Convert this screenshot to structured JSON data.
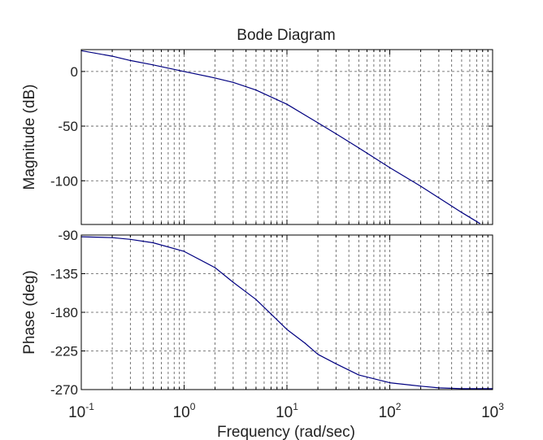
{
  "chart_data": [
    {
      "type": "line",
      "title": "Bode Diagram",
      "xlabel": "",
      "ylabel": "Magnitude (dB)",
      "xscale": "log",
      "xlim": [
        0.1,
        1000
      ],
      "ylim": [
        -140,
        20
      ],
      "yticks": [
        "0",
        "-50",
        "-100"
      ],
      "ytick_values": [
        0,
        -50,
        -100
      ],
      "grid": true,
      "series": [
        {
          "color": "#000080",
          "x": [
            0.1,
            0.2,
            0.3,
            0.5,
            1,
            2,
            3,
            5,
            10,
            20,
            30,
            50,
            100,
            200,
            500,
            750
          ],
          "y": [
            19,
            14,
            10,
            6,
            0,
            -6,
            -10,
            -17,
            -30,
            -47,
            -57,
            -70,
            -88,
            -105,
            -129,
            -139
          ]
        }
      ]
    },
    {
      "type": "line",
      "title": "",
      "xlabel": "Frequency  (rad/sec)",
      "ylabel": "Phase (deg)",
      "xscale": "log",
      "xlim": [
        0.1,
        1000
      ],
      "ylim": [
        -270,
        -90
      ],
      "yticks": [
        "-90",
        "-135",
        "-180",
        "-225",
        "-270"
      ],
      "ytick_values": [
        -90,
        -135,
        -180,
        -225,
        -270
      ],
      "xtick_base": "10",
      "xtick_exponents": [
        "-1",
        "0",
        "1",
        "2",
        "3"
      ],
      "grid": true,
      "series": [
        {
          "color": "#000080",
          "x": [
            0.1,
            0.2,
            0.3,
            0.5,
            1,
            2,
            3,
            5,
            7,
            10,
            15,
            20,
            30,
            50,
            100,
            200,
            300,
            500,
            1000
          ],
          "y": [
            -92,
            -93,
            -95,
            -99,
            -109,
            -128,
            -145,
            -165,
            -182,
            -200,
            -216,
            -229,
            -240,
            -253,
            -262,
            -266,
            -268,
            -269,
            -269
          ]
        }
      ]
    }
  ]
}
